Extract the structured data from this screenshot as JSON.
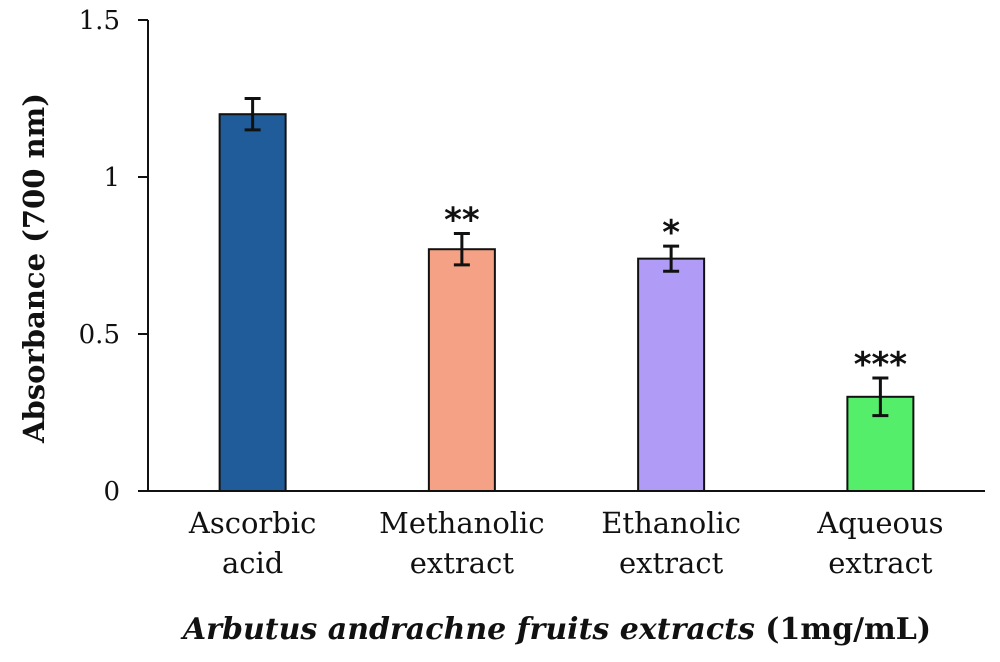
{
  "chart_data": {
    "type": "bar",
    "categories": [
      [
        "Ascorbic",
        "acid"
      ],
      [
        "Methanolic",
        "extract"
      ],
      [
        "Ethanolic",
        "extract"
      ],
      [
        "Aqueous",
        "extract"
      ]
    ],
    "values": [
      1.2,
      0.77,
      0.74,
      0.3
    ],
    "errors": [
      0.05,
      0.05,
      0.04,
      0.06
    ],
    "significance": [
      "",
      "**",
      "*",
      "***"
    ],
    "colors": [
      "#1f5c99",
      "#f4a185",
      "#b09cf6",
      "#55ee6a"
    ],
    "ylabel": "Absorbance (700 nm)",
    "xlabel_italic": "Arbutus andrachne fruits extracts",
    "xlabel_plain": " (1mg/mL)",
    "ylim": [
      0,
      1.5
    ],
    "yticks": [
      0,
      0.5,
      1,
      1.5
    ],
    "ytick_labels": [
      "0",
      "0.5",
      "1",
      "1.5"
    ],
    "grid": false,
    "legend": "none"
  }
}
